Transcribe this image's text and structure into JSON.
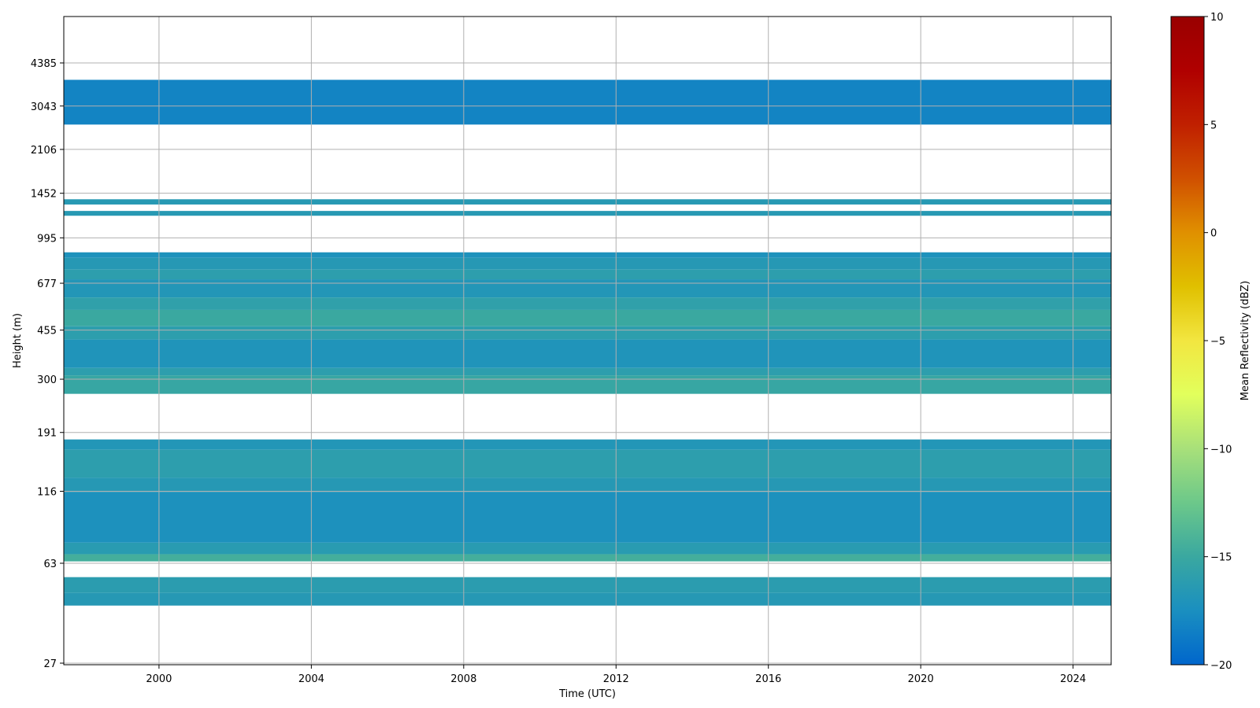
{
  "chart_data": {
    "type": "heatmap",
    "xlabel": "Time (UTC)",
    "ylabel": "Height (m)",
    "x_range": [
      1997.5,
      2025.0
    ],
    "x_ticks": [
      "2000",
      "2004",
      "2008",
      "2012",
      "2016",
      "2020",
      "2024"
    ],
    "y_axis_scale": "log",
    "y_ticks": [
      "27",
      "63",
      "116",
      "191",
      "300",
      "455",
      "677",
      "995",
      "1452",
      "2106",
      "3043",
      "4385"
    ],
    "y_range_m": [
      26,
      6100
    ],
    "grid": true,
    "colorbar": {
      "label": "Mean Reflectivity (dBZ)",
      "range": [
        -20,
        10
      ],
      "ticks": [
        "10",
        "5",
        "0",
        "−5",
        "−10",
        "−15",
        "−20"
      ],
      "colormap": [
        "#0066cc",
        "#1a8fc0",
        "#3aa8a0",
        "#6cc88a",
        "#a8e07a",
        "#e2ff5c",
        "#f2e640",
        "#e0c000",
        "#e09000",
        "#d05000",
        "#c02000",
        "#b00000",
        "#990000"
      ]
    },
    "bands": [
      {
        "bottom_m": 2600,
        "top_m": 3800,
        "dbz": -18.2
      },
      {
        "bottom_m": 1320,
        "top_m": 1380,
        "dbz": -16.5
      },
      {
        "bottom_m": 1200,
        "top_m": 1250,
        "dbz": -16.5
      },
      {
        "bottom_m": 840,
        "top_m": 880,
        "dbz": -17.2
      },
      {
        "bottom_m": 760,
        "top_m": 840,
        "dbz": -16.6
      },
      {
        "bottom_m": 700,
        "top_m": 760,
        "dbz": -16.0
      },
      {
        "bottom_m": 600,
        "top_m": 700,
        "dbz": -16.8
      },
      {
        "bottom_m": 540,
        "top_m": 600,
        "dbz": -15.8
      },
      {
        "bottom_m": 470,
        "top_m": 540,
        "dbz": -15.0
      },
      {
        "bottom_m": 420,
        "top_m": 470,
        "dbz": -16.0
      },
      {
        "bottom_m": 330,
        "top_m": 420,
        "dbz": -17.0
      },
      {
        "bottom_m": 310,
        "top_m": 330,
        "dbz": -16.0
      },
      {
        "bottom_m": 265,
        "top_m": 310,
        "dbz": -15.2
      },
      {
        "bottom_m": 165,
        "top_m": 180,
        "dbz": -16.8
      },
      {
        "bottom_m": 130,
        "top_m": 165,
        "dbz": -16.0
      },
      {
        "bottom_m": 115,
        "top_m": 130,
        "dbz": -16.6
      },
      {
        "bottom_m": 75,
        "top_m": 115,
        "dbz": -17.3
      },
      {
        "bottom_m": 68,
        "top_m": 75,
        "dbz": -16.3
      },
      {
        "bottom_m": 64,
        "top_m": 68,
        "dbz": -14.5
      },
      {
        "bottom_m": 49,
        "top_m": 56,
        "dbz": -16.2
      },
      {
        "bottom_m": 44,
        "top_m": 49,
        "dbz": -16.6
      }
    ]
  }
}
